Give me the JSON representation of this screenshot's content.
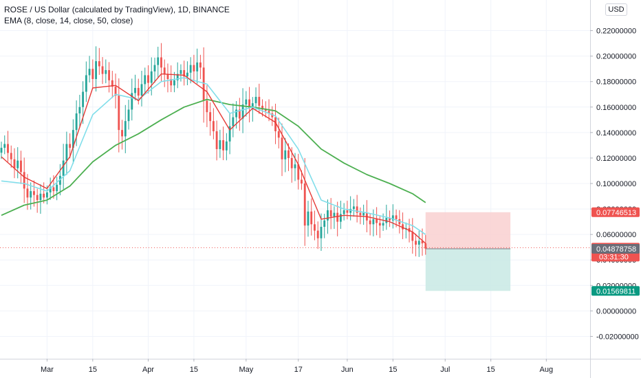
{
  "legend": {
    "title": "ROSE / US Dollar (calculated by TradingView), 1D, BINANCE",
    "indicator": "EMA (8, close, 14, close, 50, close)"
  },
  "currency": "USD",
  "colors": {
    "up": "#26a69a",
    "down": "#ef5350",
    "ema_fast": "#e53935",
    "ema_mid": "#80deea",
    "ema_slow": "#4caf50",
    "stop_zone": "#f9d0d0",
    "target_zone": "#c8e9e4",
    "grid": "#f0f3fa"
  },
  "chart_data": {
    "type": "candlestick",
    "y_axis": {
      "min": -0.03,
      "max": 0.23,
      "ticks": [
        "0.22000000",
        "0.20000000",
        "0.18000000",
        "0.16000000",
        "0.14000000",
        "0.12000000",
        "0.10000000",
        "0.08000000",
        "0.06000000",
        "0.04000000",
        "0.02000000",
        "0.00000000",
        "-0.02000000"
      ],
      "tick_values": [
        0.22,
        0.2,
        0.18,
        0.16,
        0.14,
        0.12,
        0.1,
        0.08,
        0.06,
        0.04,
        0.02,
        0.0,
        -0.02
      ]
    },
    "x_axis": {
      "start": "2021-02-15",
      "end": "2021-08-14",
      "ticks": [
        {
          "label": "Mar",
          "date": "2021-03-01"
        },
        {
          "label": "15",
          "date": "2021-03-15"
        },
        {
          "label": "Apr",
          "date": "2021-04-01"
        },
        {
          "label": "15",
          "date": "2021-04-15"
        },
        {
          "label": "May",
          "date": "2021-05-01"
        },
        {
          "label": "17",
          "date": "2021-05-17"
        },
        {
          "label": "Jun",
          "date": "2021-06-01"
        },
        {
          "label": "15",
          "date": "2021-06-15"
        },
        {
          "label": "Jul",
          "date": "2021-07-01"
        },
        {
          "label": "15",
          "date": "2021-07-15"
        },
        {
          "label": "Aug",
          "date": "2021-08-01"
        }
      ]
    },
    "closes": [
      [
        "2021-02-15",
        0.128
      ],
      [
        "2021-02-16",
        0.131
      ],
      [
        "2021-02-17",
        0.124
      ],
      [
        "2021-02-18",
        0.119
      ],
      [
        "2021-02-19",
        0.112
      ],
      [
        "2021-02-20",
        0.118
      ],
      [
        "2021-02-21",
        0.109
      ],
      [
        "2021-02-22",
        0.096
      ],
      [
        "2021-02-23",
        0.089
      ],
      [
        "2021-02-24",
        0.094
      ],
      [
        "2021-02-25",
        0.091
      ],
      [
        "2021-02-26",
        0.087
      ],
      [
        "2021-02-27",
        0.092
      ],
      [
        "2021-02-28",
        0.089
      ],
      [
        "2021-03-01",
        0.093
      ],
      [
        "2021-03-02",
        0.097
      ],
      [
        "2021-03-03",
        0.094
      ],
      [
        "2021-03-04",
        0.099
      ],
      [
        "2021-03-05",
        0.106
      ],
      [
        "2021-03-06",
        0.118
      ],
      [
        "2021-03-07",
        0.131
      ],
      [
        "2021-03-08",
        0.128
      ],
      [
        "2021-03-09",
        0.142
      ],
      [
        "2021-03-10",
        0.155
      ],
      [
        "2021-03-11",
        0.16
      ],
      [
        "2021-03-12",
        0.172
      ],
      [
        "2021-03-13",
        0.185
      ],
      [
        "2021-03-14",
        0.19
      ],
      [
        "2021-03-15",
        0.182
      ],
      [
        "2021-03-16",
        0.196
      ],
      [
        "2021-03-17",
        0.192
      ],
      [
        "2021-03-18",
        0.186
      ],
      [
        "2021-03-19",
        0.189
      ],
      [
        "2021-03-20",
        0.181
      ],
      [
        "2021-03-21",
        0.176
      ],
      [
        "2021-03-22",
        0.169
      ],
      [
        "2021-03-23",
        0.142
      ],
      [
        "2021-03-24",
        0.137
      ],
      [
        "2021-03-25",
        0.149
      ],
      [
        "2021-03-26",
        0.158
      ],
      [
        "2021-03-27",
        0.171
      ],
      [
        "2021-03-28",
        0.175
      ],
      [
        "2021-03-29",
        0.169
      ],
      [
        "2021-03-30",
        0.178
      ],
      [
        "2021-03-31",
        0.185
      ],
      [
        "2021-04-01",
        0.179
      ],
      [
        "2021-04-02",
        0.188
      ],
      [
        "2021-04-03",
        0.193
      ],
      [
        "2021-04-04",
        0.199
      ],
      [
        "2021-04-05",
        0.191
      ],
      [
        "2021-04-06",
        0.186
      ],
      [
        "2021-04-07",
        0.182
      ],
      [
        "2021-04-08",
        0.177
      ],
      [
        "2021-04-09",
        0.181
      ],
      [
        "2021-04-10",
        0.186
      ],
      [
        "2021-04-11",
        0.189
      ],
      [
        "2021-04-12",
        0.184
      ],
      [
        "2021-04-13",
        0.187
      ],
      [
        "2021-04-14",
        0.193
      ],
      [
        "2021-04-15",
        0.188
      ],
      [
        "2021-04-16",
        0.195
      ],
      [
        "2021-04-17",
        0.191
      ],
      [
        "2021-04-18",
        0.165
      ],
      [
        "2021-04-19",
        0.156
      ],
      [
        "2021-04-20",
        0.149
      ],
      [
        "2021-04-21",
        0.141
      ],
      [
        "2021-04-22",
        0.127
      ],
      [
        "2021-04-23",
        0.134
      ],
      [
        "2021-04-24",
        0.126
      ],
      [
        "2021-04-25",
        0.133
      ],
      [
        "2021-04-26",
        0.145
      ],
      [
        "2021-04-27",
        0.152
      ],
      [
        "2021-04-28",
        0.158
      ],
      [
        "2021-04-29",
        0.151
      ],
      [
        "2021-04-30",
        0.162
      ],
      [
        "2021-05-01",
        0.166
      ],
      [
        "2021-05-02",
        0.159
      ],
      [
        "2021-05-03",
        0.163
      ],
      [
        "2021-05-04",
        0.168
      ],
      [
        "2021-05-05",
        0.161
      ],
      [
        "2021-05-06",
        0.158
      ],
      [
        "2021-05-07",
        0.157
      ],
      [
        "2021-05-08",
        0.155
      ],
      [
        "2021-05-09",
        0.152
      ],
      [
        "2021-05-10",
        0.141
      ],
      [
        "2021-05-11",
        0.136
      ],
      [
        "2021-05-12",
        0.119
      ],
      [
        "2021-05-13",
        0.126
      ],
      [
        "2021-05-14",
        0.12
      ],
      [
        "2021-05-15",
        0.112
      ],
      [
        "2021-05-16",
        0.115
      ],
      [
        "2021-05-17",
        0.103
      ],
      [
        "2021-05-18",
        0.1
      ],
      [
        "2021-05-19",
        0.067
      ],
      [
        "2021-05-20",
        0.078
      ],
      [
        "2021-05-21",
        0.068
      ],
      [
        "2021-05-22",
        0.063
      ],
      [
        "2021-05-23",
        0.057
      ],
      [
        "2021-05-24",
        0.066
      ],
      [
        "2021-05-25",
        0.071
      ],
      [
        "2021-05-26",
        0.079
      ],
      [
        "2021-05-27",
        0.074
      ],
      [
        "2021-05-28",
        0.077
      ],
      [
        "2021-05-29",
        0.07
      ],
      [
        "2021-05-30",
        0.076
      ],
      [
        "2021-05-31",
        0.079
      ],
      [
        "2021-06-01",
        0.077
      ],
      [
        "2021-06-02",
        0.08
      ],
      [
        "2021-06-03",
        0.082
      ],
      [
        "2021-06-04",
        0.077
      ],
      [
        "2021-06-05",
        0.075
      ],
      [
        "2021-06-06",
        0.077
      ],
      [
        "2021-06-07",
        0.071
      ],
      [
        "2021-06-08",
        0.068
      ],
      [
        "2021-06-09",
        0.072
      ],
      [
        "2021-06-10",
        0.069
      ],
      [
        "2021-06-11",
        0.067
      ],
      [
        "2021-06-12",
        0.069
      ],
      [
        "2021-06-13",
        0.073
      ],
      [
        "2021-06-14",
        0.071
      ],
      [
        "2021-06-15",
        0.075
      ],
      [
        "2021-06-16",
        0.072
      ],
      [
        "2021-06-17",
        0.068
      ],
      [
        "2021-06-18",
        0.064
      ],
      [
        "2021-06-19",
        0.065
      ],
      [
        "2021-06-20",
        0.062
      ],
      [
        "2021-06-21",
        0.055
      ],
      [
        "2021-06-22",
        0.052
      ],
      [
        "2021-06-23",
        0.055
      ],
      [
        "2021-06-24",
        0.053
      ],
      [
        "2021-06-25",
        0.049
      ]
    ],
    "ema_fast_values": [
      [
        "2021-02-15",
        0.121
      ],
      [
        "2021-02-22",
        0.105
      ],
      [
        "2021-03-01",
        0.096
      ],
      [
        "2021-03-08",
        0.121
      ],
      [
        "2021-03-15",
        0.175
      ],
      [
        "2021-03-22",
        0.177
      ],
      [
        "2021-03-29",
        0.165
      ],
      [
        "2021-04-05",
        0.186
      ],
      [
        "2021-04-12",
        0.185
      ],
      [
        "2021-04-19",
        0.172
      ],
      [
        "2021-04-26",
        0.142
      ],
      [
        "2021-05-03",
        0.159
      ],
      [
        "2021-05-10",
        0.148
      ],
      [
        "2021-05-17",
        0.115
      ],
      [
        "2021-05-24",
        0.072
      ],
      [
        "2021-05-31",
        0.075
      ],
      [
        "2021-06-07",
        0.074
      ],
      [
        "2021-06-14",
        0.07
      ],
      [
        "2021-06-21",
        0.062
      ],
      [
        "2021-06-25",
        0.053
      ]
    ],
    "ema_mid_values": [
      [
        "2021-02-15",
        0.102
      ],
      [
        "2021-02-22",
        0.1
      ],
      [
        "2021-03-01",
        0.094
      ],
      [
        "2021-03-08",
        0.11
      ],
      [
        "2021-03-15",
        0.154
      ],
      [
        "2021-03-22",
        0.17
      ],
      [
        "2021-03-29",
        0.166
      ],
      [
        "2021-04-05",
        0.18
      ],
      [
        "2021-04-12",
        0.183
      ],
      [
        "2021-04-19",
        0.178
      ],
      [
        "2021-04-26",
        0.155
      ],
      [
        "2021-05-03",
        0.16
      ],
      [
        "2021-05-10",
        0.153
      ],
      [
        "2021-05-17",
        0.127
      ],
      [
        "2021-05-24",
        0.087
      ],
      [
        "2021-05-31",
        0.08
      ],
      [
        "2021-06-07",
        0.077
      ],
      [
        "2021-06-14",
        0.073
      ],
      [
        "2021-06-21",
        0.067
      ],
      [
        "2021-06-25",
        0.06
      ]
    ],
    "ema_slow_values": [
      [
        "2021-02-15",
        0.075
      ],
      [
        "2021-02-22",
        0.083
      ],
      [
        "2021-03-01",
        0.087
      ],
      [
        "2021-03-08",
        0.098
      ],
      [
        "2021-03-15",
        0.117
      ],
      [
        "2021-03-22",
        0.13
      ],
      [
        "2021-03-29",
        0.139
      ],
      [
        "2021-04-05",
        0.15
      ],
      [
        "2021-04-12",
        0.16
      ],
      [
        "2021-04-19",
        0.166
      ],
      [
        "2021-04-26",
        0.162
      ],
      [
        "2021-05-03",
        0.16
      ],
      [
        "2021-05-10",
        0.157
      ],
      [
        "2021-05-17",
        0.145
      ],
      [
        "2021-05-24",
        0.127
      ],
      [
        "2021-05-31",
        0.116
      ],
      [
        "2021-06-07",
        0.107
      ],
      [
        "2021-06-14",
        0.1
      ],
      [
        "2021-06-21",
        0.092
      ],
      [
        "2021-06-25",
        0.085
      ]
    ],
    "position": {
      "start": "2021-06-25",
      "end": "2021-07-21",
      "entry": 0.04878758,
      "stop": 0.07746513,
      "target": 0.01569811
    },
    "last_price": 0.04963055,
    "price_tags": [
      {
        "value": 0.07746513,
        "label": "0.07746513",
        "color": "#ef5350"
      },
      {
        "value": 0.04963055,
        "label": "0.04963055",
        "sub": "03:31:30",
        "color": "#ef5350"
      },
      {
        "value": 0.04878758,
        "label": "0.04878758",
        "color": "#6a6d78"
      },
      {
        "value": 0.01569811,
        "label": "0.01569811",
        "color": "#089981"
      }
    ]
  }
}
